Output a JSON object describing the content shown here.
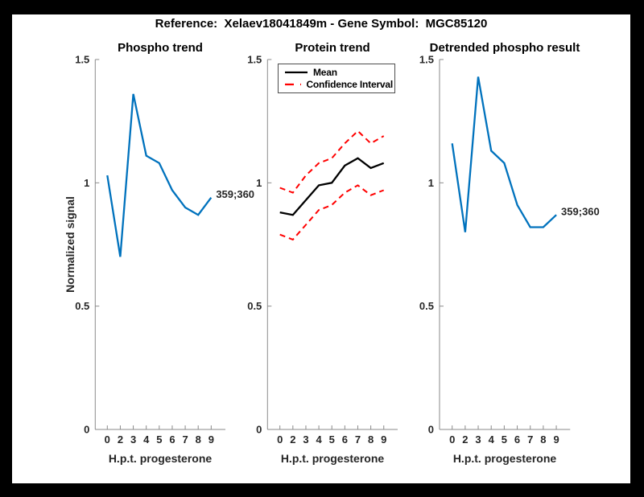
{
  "figure": {
    "title": "Reference:  Xelaev18041849m - Gene Symbol:  MGC85120",
    "background": "#ffffff",
    "frame_color": "#000000"
  },
  "colors": {
    "blue": "#0072BD",
    "red": "#FF0000",
    "black": "#000000",
    "axis": "#8a8a8a",
    "text": "#262626"
  },
  "chart_data": [
    {
      "type": "line",
      "title": "Phospho trend",
      "xlabel": "H.p.t. progesterone",
      "ylabel": "Normalized signal",
      "x_ticklabels": [
        "0",
        "2",
        "3",
        "4",
        "5",
        "6",
        "7",
        "8",
        "9"
      ],
      "y_ticklabels": [
        "0",
        "0.5",
        "1",
        "1.5"
      ],
      "y_tick_values": [
        0,
        0.5,
        1,
        1.5
      ],
      "ylim": [
        0,
        1.5
      ],
      "grid": false,
      "legend": null,
      "end_label": "359;360",
      "series": [
        {
          "name": "Phospho trend",
          "color": "#0072BD",
          "dash": false,
          "values": [
            1.03,
            0.7,
            1.36,
            1.11,
            1.08,
            0.97,
            0.9,
            0.87,
            0.94
          ]
        }
      ]
    },
    {
      "type": "line",
      "title": "Protein trend",
      "xlabel": "H.p.t. progesterone",
      "ylabel": null,
      "x_ticklabels": [
        "0",
        "2",
        "3",
        "4",
        "5",
        "6",
        "7",
        "8",
        "9"
      ],
      "y_ticklabels": [
        "0",
        "0.5",
        "1",
        "1.5"
      ],
      "y_tick_values": [
        0,
        0.5,
        1,
        1.5
      ],
      "ylim": [
        0,
        1.5
      ],
      "grid": false,
      "legend": {
        "position": "top-left",
        "entries": [
          {
            "label": "Mean",
            "color": "#000000",
            "dash": false
          },
          {
            "label": "Confidence Interval",
            "color": "#FF0000",
            "dash": true
          }
        ]
      },
      "end_label": null,
      "series": [
        {
          "name": "Confidence Interval upper",
          "color": "#FF0000",
          "dash": true,
          "values": [
            0.98,
            0.96,
            1.03,
            1.08,
            1.1,
            1.16,
            1.21,
            1.16,
            1.19
          ]
        },
        {
          "name": "Confidence Interval lower",
          "color": "#FF0000",
          "dash": true,
          "values": [
            0.79,
            0.77,
            0.83,
            0.89,
            0.91,
            0.96,
            0.99,
            0.95,
            0.97
          ]
        },
        {
          "name": "Mean",
          "color": "#000000",
          "dash": false,
          "values": [
            0.88,
            0.87,
            0.93,
            0.99,
            1.0,
            1.07,
            1.1,
            1.06,
            1.08
          ]
        }
      ]
    },
    {
      "type": "line",
      "title": "Detrended phospho result",
      "xlabel": "H.p.t. progesterone",
      "ylabel": null,
      "x_ticklabels": [
        "0",
        "2",
        "3",
        "4",
        "5",
        "6",
        "7",
        "8",
        "9"
      ],
      "y_ticklabels": [
        "0",
        "0.5",
        "1",
        "1.5"
      ],
      "y_tick_values": [
        0,
        0.5,
        1,
        1.5
      ],
      "ylim": [
        0,
        1.5
      ],
      "grid": false,
      "legend": null,
      "end_label": "359;360",
      "series": [
        {
          "name": "Detrended phospho",
          "color": "#0072BD",
          "dash": false,
          "values": [
            1.16,
            0.8,
            1.43,
            1.13,
            1.08,
            0.91,
            0.82,
            0.82,
            0.87
          ]
        }
      ]
    }
  ]
}
